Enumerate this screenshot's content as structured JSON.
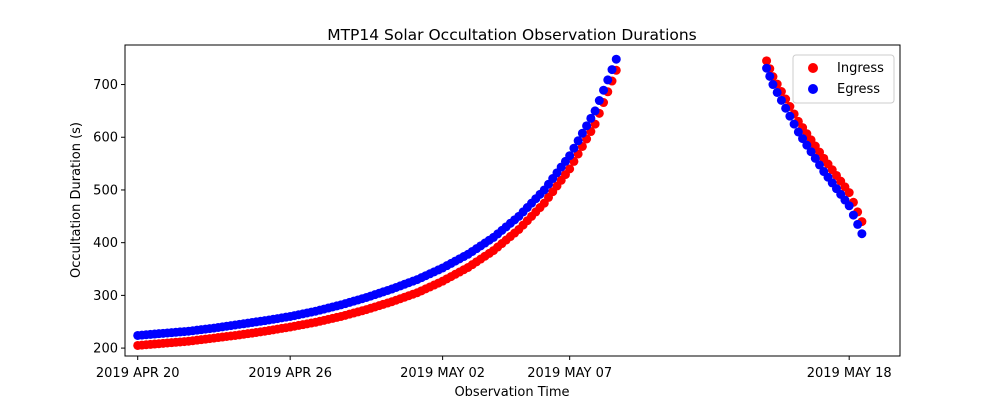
{
  "chart_data": {
    "type": "scatter",
    "title": "MTP14 Solar Occultation Observation Durations",
    "xlabel": "Observation Time",
    "ylabel": "Occultation Duration (s)",
    "x_ticks": [
      {
        "date": "2019-04-20",
        "label": "2019 APR 20"
      },
      {
        "date": "2019-04-26",
        "label": "2019 APR 26"
      },
      {
        "date": "2019-05-02",
        "label": "2019 MAY 02"
      },
      {
        "date": "2019-05-07",
        "label": "2019 MAY 07"
      },
      {
        "date": "2019-05-18",
        "label": "2019 MAY 18"
      }
    ],
    "xlim": [
      "2019-04-19T12:00",
      "2019-05-20T00:00"
    ],
    "ylim": [
      185,
      775
    ],
    "y_ticks": [
      200,
      300,
      400,
      500,
      600,
      700
    ],
    "grid": false,
    "legend_position": "top-right",
    "series": [
      {
        "name": "Ingress",
        "color": "#ff0000",
        "points": [
          [
            "2019-04-20T00:00",
            205
          ],
          [
            "2019-04-21T00:00",
            209
          ],
          [
            "2019-04-22T00:00",
            213
          ],
          [
            "2019-04-23T00:00",
            219
          ],
          [
            "2019-04-24T00:00",
            225
          ],
          [
            "2019-04-25T00:00",
            232
          ],
          [
            "2019-04-26T00:00",
            240
          ],
          [
            "2019-04-27T00:00",
            249
          ],
          [
            "2019-04-28T00:00",
            260
          ],
          [
            "2019-04-29T00:00",
            273
          ],
          [
            "2019-04-30T00:00",
            288
          ],
          [
            "2019-05-01T00:00",
            305
          ],
          [
            "2019-05-02T00:00",
            327
          ],
          [
            "2019-05-03T00:00",
            353
          ],
          [
            "2019-05-04T00:00",
            385
          ],
          [
            "2019-05-05T00:00",
            425
          ],
          [
            "2019-05-06T00:00",
            475
          ],
          [
            "2019-05-07T00:00",
            540
          ],
          [
            "2019-05-08T00:00",
            625
          ],
          [
            "2019-05-08T20:00",
            727
          ],
          [
            "2019-05-14T18:00",
            745
          ],
          [
            "2019-05-15T00:00",
            715
          ],
          [
            "2019-05-16T00:00",
            630
          ],
          [
            "2019-05-17T00:00",
            560
          ],
          [
            "2019-05-18T00:00",
            495
          ],
          [
            "2019-05-18T12:00",
            440
          ]
        ]
      },
      {
        "name": "Egress",
        "color": "#0000ff",
        "points": [
          [
            "2019-04-20T00:00",
            224
          ],
          [
            "2019-04-21T00:00",
            228
          ],
          [
            "2019-04-22T00:00",
            232
          ],
          [
            "2019-04-23T00:00",
            238
          ],
          [
            "2019-04-24T00:00",
            245
          ],
          [
            "2019-04-25T00:00",
            252
          ],
          [
            "2019-04-26T00:00",
            260
          ],
          [
            "2019-04-27T00:00",
            270
          ],
          [
            "2019-04-28T00:00",
            282
          ],
          [
            "2019-04-29T00:00",
            296
          ],
          [
            "2019-04-30T00:00",
            312
          ],
          [
            "2019-05-01T00:00",
            330
          ],
          [
            "2019-05-02T00:00",
            352
          ],
          [
            "2019-05-03T00:00",
            378
          ],
          [
            "2019-05-04T00:00",
            410
          ],
          [
            "2019-05-05T00:00",
            450
          ],
          [
            "2019-05-06T00:00",
            500
          ],
          [
            "2019-05-07T00:00",
            565
          ],
          [
            "2019-05-08T00:00",
            650
          ],
          [
            "2019-05-08T20:00",
            748
          ],
          [
            "2019-05-14T18:00",
            731
          ],
          [
            "2019-05-15T00:00",
            700
          ],
          [
            "2019-05-16T00:00",
            610
          ],
          [
            "2019-05-17T00:00",
            535
          ],
          [
            "2019-05-18T00:00",
            470
          ],
          [
            "2019-05-18T12:00",
            417
          ]
        ]
      }
    ]
  }
}
